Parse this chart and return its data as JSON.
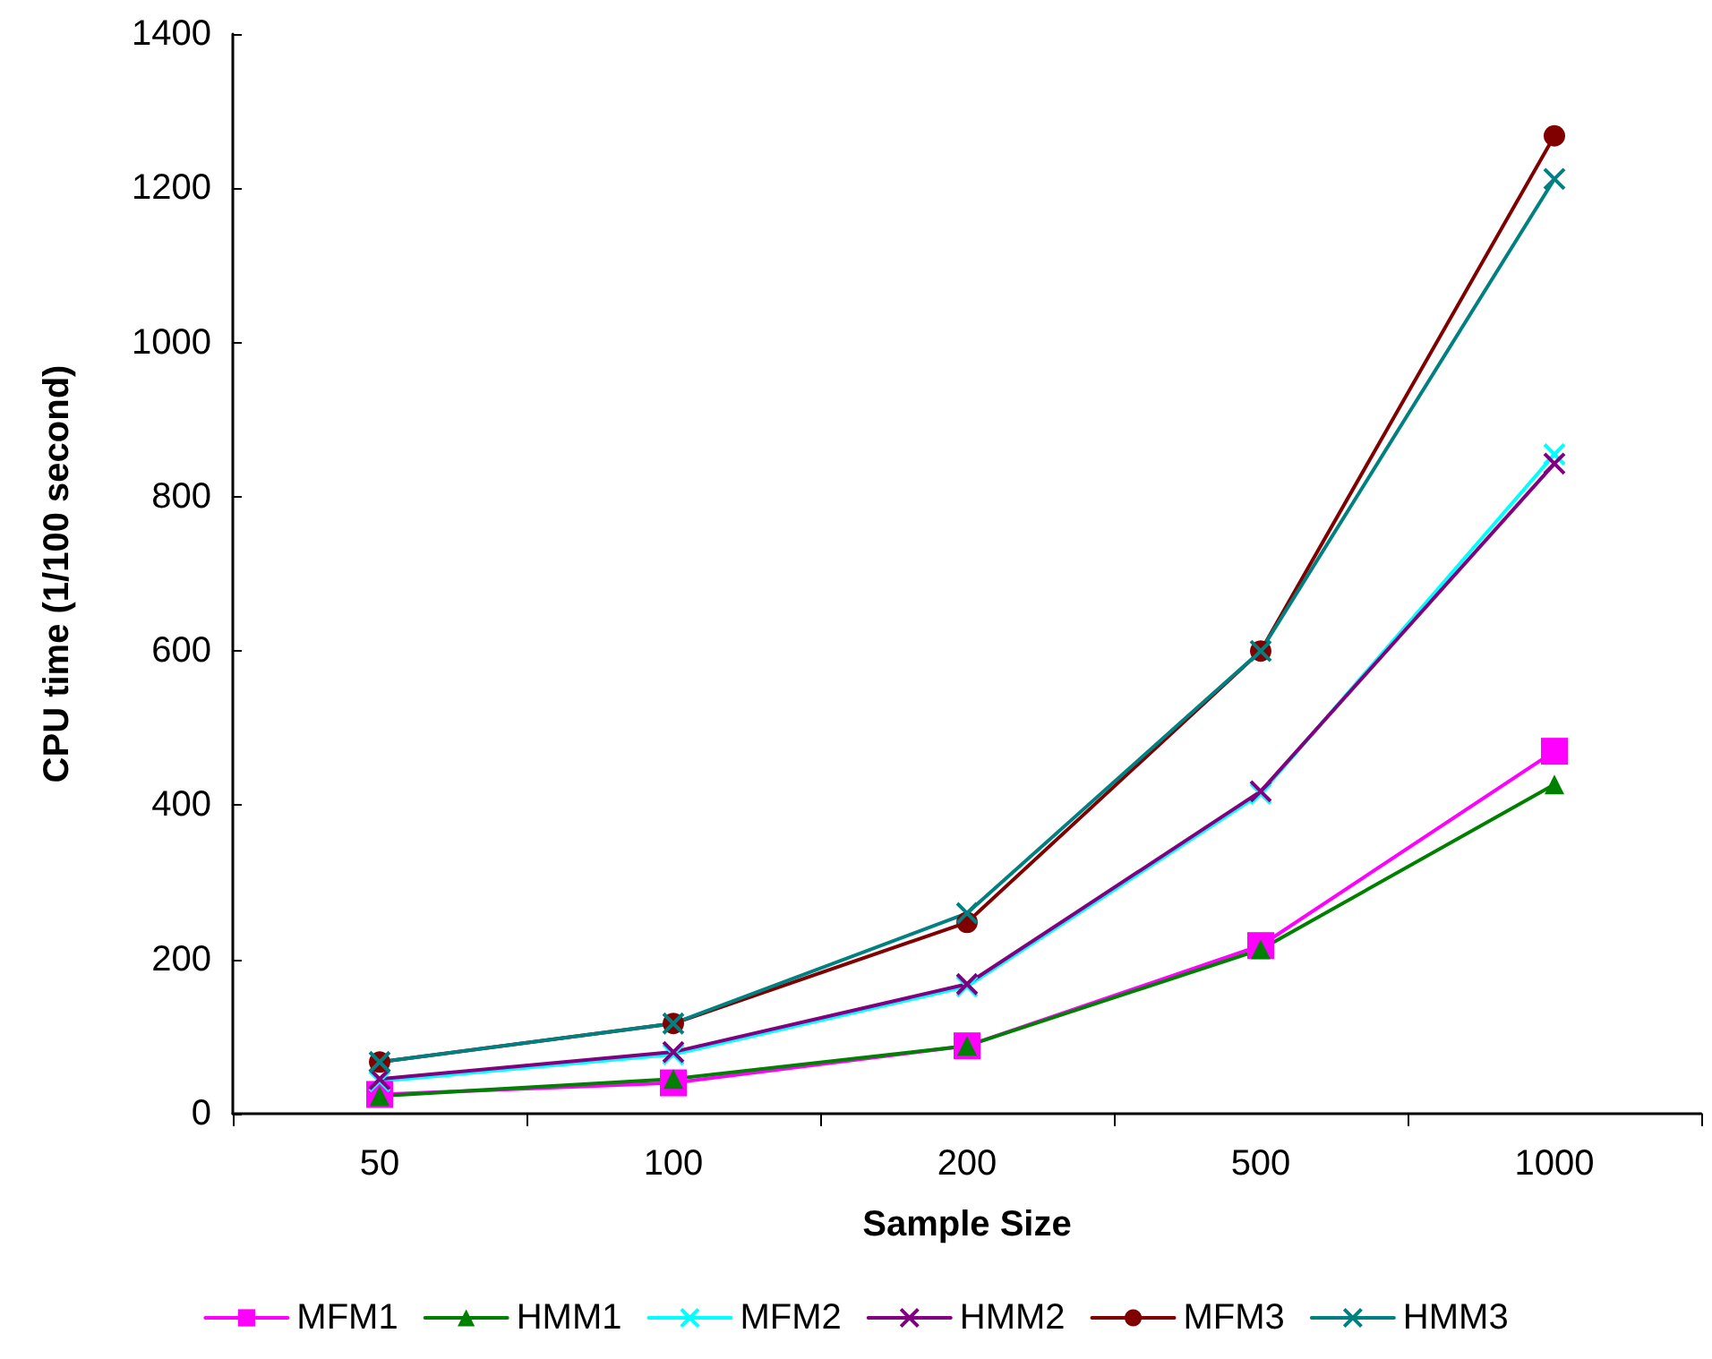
{
  "chart_data": {
    "type": "line",
    "xlabel": "Sample Size",
    "ylabel": "CPU time (1/100 second)",
    "categories": [
      "50",
      "100",
      "200",
      "500",
      "1000"
    ],
    "ylim": [
      0,
      1400
    ],
    "yticks": [
      0,
      200,
      400,
      600,
      800,
      1000,
      1200,
      1400
    ],
    "grid": false,
    "legend": "bottom",
    "series": [
      {
        "name": "MFM1",
        "color": "#ff00ff",
        "marker": "square",
        "values": [
          25,
          40,
          88,
          218,
          470
        ]
      },
      {
        "name": "HMM1",
        "color": "#008000",
        "marker": "triangle",
        "values": [
          23,
          45,
          88,
          213,
          427
        ]
      },
      {
        "name": "MFM2",
        "color": "#00ffff",
        "marker": "cross",
        "values": [
          42,
          77,
          165,
          415,
          855
        ]
      },
      {
        "name": "HMM2",
        "color": "#800080",
        "marker": "cross",
        "values": [
          45,
          80,
          168,
          418,
          843
        ]
      },
      {
        "name": "MFM3",
        "color": "#800000",
        "marker": "circle",
        "values": [
          67,
          117,
          248,
          600,
          1268
        ]
      },
      {
        "name": "HMM3",
        "color": "#008080",
        "marker": "cross",
        "values": [
          67,
          117,
          260,
          600,
          1212
        ]
      }
    ]
  }
}
